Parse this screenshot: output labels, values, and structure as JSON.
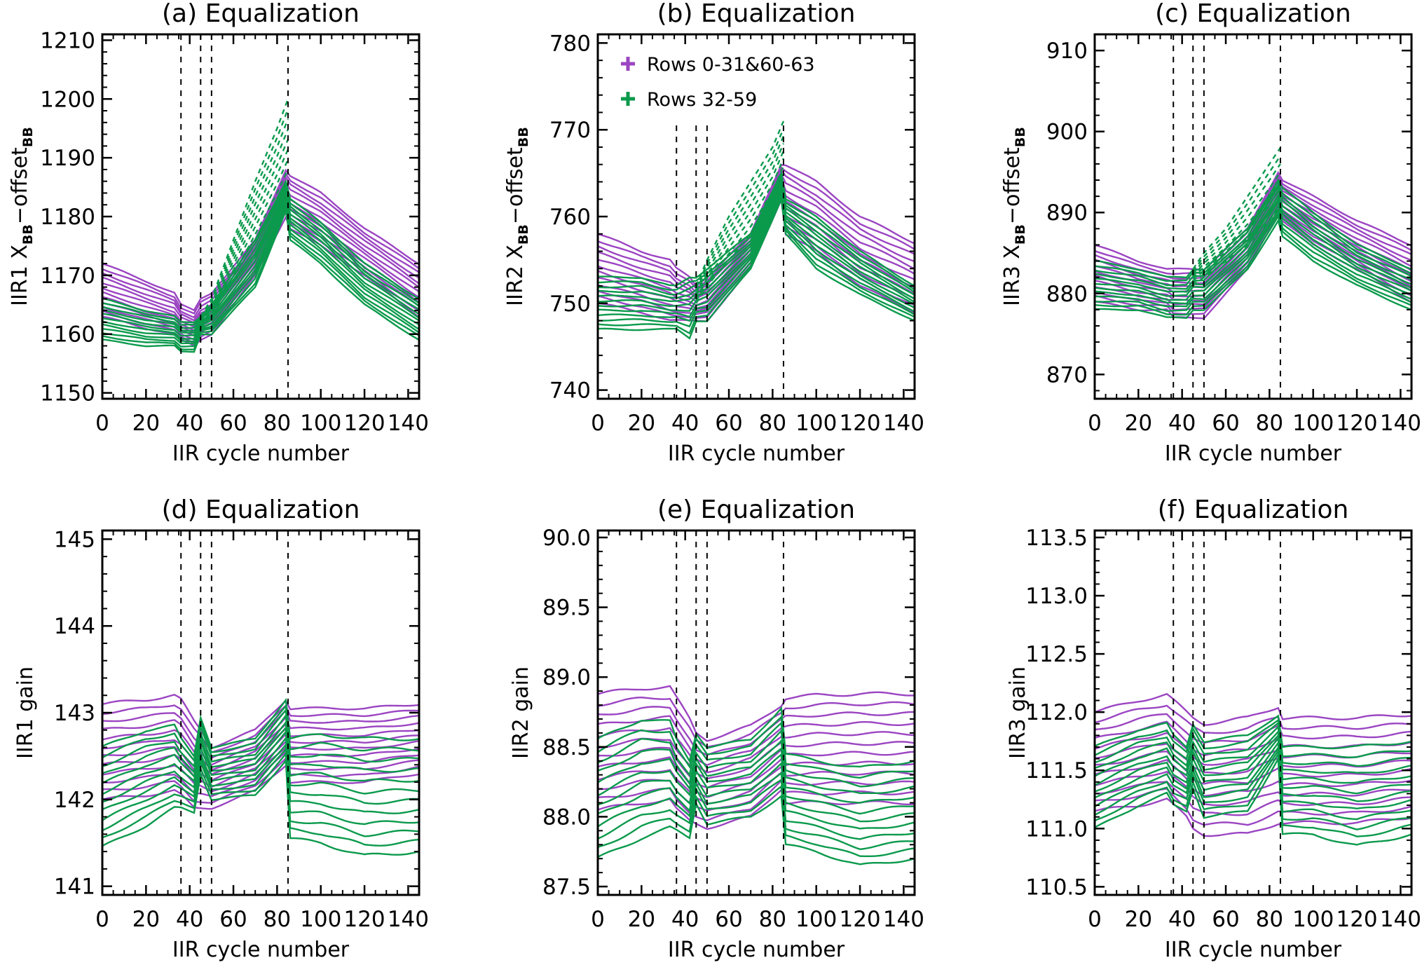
{
  "chart_data": [
    {
      "type": "line",
      "title": "(a) Equalization",
      "xlabel": "IIR cycle number",
      "ylabel": {
        "main": "IIR1 X",
        "sub1": "BB",
        "mid": "−offset",
        "sub2": "BB"
      },
      "xlim": [
        0,
        145
      ],
      "ylim": [
        1149,
        1211
      ],
      "xticks": [
        "0",
        "20",
        "40",
        "60",
        "80",
        "100",
        "120",
        "140"
      ],
      "yticks": [
        "1150",
        "1160",
        "1170",
        "1180",
        "1190",
        "1200",
        "1210"
      ],
      "vlines": [
        36,
        45,
        50,
        85
      ],
      "x": [
        0,
        20,
        33,
        36,
        42,
        45,
        50,
        70,
        84,
        86,
        100,
        120,
        145
      ],
      "groups": [
        {
          "name": "Rows 0-31&60-63",
          "color": "#9b45c2",
          "high": [
            1172,
            1169,
            1167,
            1165,
            1164,
            1166,
            1167,
            1176,
            1188,
            1187,
            1184,
            1178,
            1172
          ],
          "low": [
            1163,
            1161,
            1160,
            1159,
            1158,
            1159,
            1160,
            1170,
            1180,
            1178,
            1175,
            1170,
            1163
          ]
        },
        {
          "name": "Rows 32-59",
          "color": "#0b9a4c",
          "high": [
            1166,
            1164,
            1163,
            1162,
            1162,
            1163,
            1165,
            1176,
            1186,
            1183,
            1179,
            1172,
            1166
          ],
          "low": [
            1159,
            1158,
            1158,
            1157,
            1157,
            1160,
            1160,
            1168,
            1181,
            1176,
            1172,
            1165,
            1159
          ]
        }
      ],
      "dashed": {
        "color": "#0b9a4c",
        "x": [
          45,
          50,
          60,
          70,
          80,
          85
        ],
        "high": [
          1163,
          1166,
          1176,
          1186,
          1195,
          1200
        ],
        "low": [
          1161,
          1163,
          1170,
          1177,
          1184,
          1188
        ]
      }
    },
    {
      "type": "line",
      "title": "(b) Equalization",
      "xlabel": "IIR cycle number",
      "ylabel": {
        "main": "IIR2 X",
        "sub1": "BB",
        "mid": "−offset",
        "sub2": "BB"
      },
      "xlim": [
        0,
        145
      ],
      "ylim": [
        739,
        781
      ],
      "xticks": [
        "0",
        "20",
        "40",
        "60",
        "80",
        "100",
        "120",
        "140"
      ],
      "yticks": [
        "740",
        "750",
        "760",
        "770",
        "780"
      ],
      "vlines": [
        36,
        45,
        50,
        85
      ],
      "legend": {
        "position": "top-left",
        "entries": [
          "Rows 0-31&60-63",
          "Rows 32-59"
        ]
      },
      "x": [
        0,
        20,
        33,
        36,
        42,
        45,
        50,
        70,
        84,
        86,
        100,
        120,
        145
      ],
      "groups": [
        {
          "name": "Rows 0-31&60-63",
          "color": "#9b45c2",
          "high": [
            758,
            756,
            755,
            754,
            753,
            752,
            753,
            758,
            766,
            766,
            764,
            760,
            757
          ],
          "low": [
            750,
            749,
            748,
            748,
            748,
            748,
            748,
            754,
            762,
            758,
            756,
            752,
            749
          ]
        },
        {
          "name": "Rows 32-59",
          "color": "#0b9a4c",
          "high": [
            753,
            753,
            752,
            752,
            753,
            753,
            754,
            758,
            765,
            762,
            760,
            756,
            752
          ],
          "low": [
            747,
            747,
            747,
            747,
            746,
            748,
            748,
            754,
            762,
            758,
            754,
            751,
            748
          ]
        }
      ],
      "dashed": {
        "color": "#0b9a4c",
        "x": [
          45,
          50,
          60,
          70,
          80,
          85
        ],
        "high": [
          752,
          755,
          760,
          764,
          768,
          771
        ],
        "low": [
          750,
          752,
          755,
          758,
          762,
          765
        ]
      }
    },
    {
      "type": "line",
      "title": "(c) Equalization",
      "xlabel": "IIR cycle number",
      "ylabel": {
        "main": "IIR3 X",
        "sub1": "BB",
        "mid": "−offset",
        "sub2": "BB"
      },
      "xlim": [
        0,
        145
      ],
      "ylim": [
        867,
        912
      ],
      "xticks": [
        "0",
        "20",
        "40",
        "60",
        "80",
        "100",
        "120",
        "140"
      ],
      "yticks": [
        "870",
        "880",
        "890",
        "900",
        "910"
      ],
      "vlines": [
        36,
        45,
        50,
        85
      ],
      "x": [
        0,
        20,
        33,
        36,
        42,
        45,
        50,
        70,
        84,
        86,
        100,
        120,
        145
      ],
      "groups": [
        {
          "name": "Rows 0-31&60-63",
          "color": "#9b45c2",
          "high": [
            886,
            884,
            883,
            883,
            883,
            883,
            883,
            888,
            895,
            894,
            892,
            889,
            886
          ],
          "low": [
            879,
            878,
            878,
            877,
            877,
            877,
            877,
            883,
            890,
            889,
            886,
            883,
            879
          ]
        },
        {
          "name": "Rows 32-59",
          "color": "#0b9a4c",
          "high": [
            884,
            883,
            882,
            882,
            882,
            883,
            883,
            888,
            894,
            893,
            890,
            886,
            883
          ],
          "low": [
            878,
            878,
            877,
            877,
            877,
            878,
            878,
            883,
            889,
            887,
            884,
            881,
            878
          ]
        }
      ],
      "dashed": {
        "color": "#0b9a4c",
        "x": [
          45,
          50,
          60,
          70,
          80,
          85
        ],
        "high": [
          883,
          885,
          888,
          892,
          896,
          898
        ],
        "low": [
          881,
          882,
          884,
          886,
          889,
          891
        ]
      }
    },
    {
      "type": "line",
      "title": "(d) Equalization",
      "xlabel": "IIR cycle number",
      "ylabel": {
        "main": "IIR1  gain"
      },
      "xlim": [
        0,
        145
      ],
      "ylim": [
        140.9,
        145.1
      ],
      "xticks": [
        "0",
        "20",
        "40",
        "60",
        "80",
        "100",
        "120",
        "140"
      ],
      "yticks": [
        "141",
        "142",
        "143",
        "144",
        "145"
      ],
      "vlines": [
        36,
        45,
        50,
        85
      ],
      "x": [
        0,
        20,
        33,
        36,
        42,
        45,
        50,
        70,
        84,
        86,
        100,
        120,
        145
      ],
      "groups": [
        {
          "name": "Rows 0-31&60-63",
          "color": "#9b45c2",
          "high": [
            143.1,
            143.15,
            143.2,
            143.15,
            142.9,
            142.8,
            142.6,
            142.8,
            143.15,
            143.05,
            143.05,
            143.05,
            143.1
          ],
          "low": [
            142.0,
            142.05,
            142.1,
            142.05,
            141.9,
            141.9,
            141.9,
            142.1,
            142.4,
            142.2,
            142.2,
            142.2,
            142.3
          ]
        },
        {
          "name": "Rows 32-59",
          "color": "#0b9a4c",
          "high": [
            142.6,
            142.8,
            142.85,
            142.7,
            142.5,
            142.95,
            142.6,
            142.7,
            143.15,
            142.7,
            142.75,
            142.7,
            142.7
          ],
          "low": [
            141.45,
            141.7,
            141.9,
            141.9,
            141.85,
            142.3,
            142.0,
            142.05,
            142.45,
            141.55,
            141.5,
            141.35,
            141.4
          ]
        }
      ]
    },
    {
      "type": "line",
      "title": "(e) Equalization",
      "xlabel": "IIR cycle number",
      "ylabel": {
        "main": "IIR2  gain"
      },
      "xlim": [
        0,
        145
      ],
      "ylim": [
        87.44,
        90.05
      ],
      "xticks": [
        "0",
        "20",
        "40",
        "60",
        "80",
        "100",
        "120",
        "140"
      ],
      "yticks": [
        "87.5",
        "88.0",
        "88.5",
        "89.0",
        "89.5",
        "90.0"
      ],
      "vlines": [
        36,
        45,
        50,
        85
      ],
      "x": [
        0,
        20,
        33,
        36,
        42,
        45,
        50,
        70,
        84,
        86,
        100,
        120,
        145
      ],
      "groups": [
        {
          "name": "Rows 0-31&60-63",
          "color": "#9b45c2",
          "high": [
            88.88,
            88.92,
            88.93,
            88.85,
            88.7,
            88.6,
            88.55,
            88.65,
            88.8,
            88.85,
            88.87,
            88.88,
            88.88
          ],
          "low": [
            88.05,
            88.1,
            88.12,
            88.05,
            87.97,
            87.95,
            87.92,
            88.0,
            88.2,
            88.1,
            88.1,
            88.1,
            88.1
          ]
        },
        {
          "name": "Rows 32-59",
          "color": "#0b9a4c",
          "high": [
            88.55,
            88.7,
            88.68,
            88.55,
            88.4,
            88.6,
            88.5,
            88.55,
            88.78,
            88.45,
            88.4,
            88.35,
            88.4
          ],
          "low": [
            87.7,
            87.85,
            87.92,
            87.9,
            87.85,
            88.1,
            87.95,
            88.0,
            88.15,
            87.8,
            87.75,
            87.65,
            87.7
          ]
        }
      ]
    },
    {
      "type": "line",
      "title": "(f) Equalization",
      "xlabel": "IIR cycle number",
      "ylabel": {
        "main": "IIR3  gain"
      },
      "xlim": [
        0,
        145
      ],
      "ylim": [
        110.43,
        113.56
      ],
      "xticks": [
        "0",
        "20",
        "40",
        "60",
        "80",
        "100",
        "120",
        "140"
      ],
      "yticks": [
        "110.5",
        "111.0",
        "111.5",
        "112.0",
        "112.5",
        "113.0",
        "113.5"
      ],
      "vlines": [
        36,
        45,
        50,
        85
      ],
      "x": [
        0,
        20,
        33,
        36,
        42,
        45,
        50,
        70,
        84,
        86,
        100,
        120,
        145
      ],
      "groups": [
        {
          "name": "Rows 0-31&60-63",
          "color": "#9b45c2",
          "high": [
            112.0,
            112.1,
            112.15,
            112.1,
            112.0,
            111.95,
            111.9,
            111.95,
            112.05,
            111.95,
            111.95,
            111.95,
            111.98
          ],
          "low": [
            111.15,
            111.2,
            111.25,
            111.2,
            111.1,
            111.0,
            110.95,
            110.95,
            111.05,
            111.05,
            111.05,
            111.05,
            111.1
          ]
        },
        {
          "name": "Rows 32-59",
          "color": "#0b9a4c",
          "high": [
            111.7,
            111.85,
            111.9,
            111.8,
            111.7,
            111.9,
            111.75,
            111.8,
            111.97,
            111.7,
            111.7,
            111.7,
            111.75
          ],
          "low": [
            111.0,
            111.2,
            111.3,
            111.2,
            111.15,
            111.35,
            111.1,
            111.15,
            111.6,
            110.95,
            110.95,
            110.85,
            110.95
          ]
        }
      ]
    }
  ]
}
